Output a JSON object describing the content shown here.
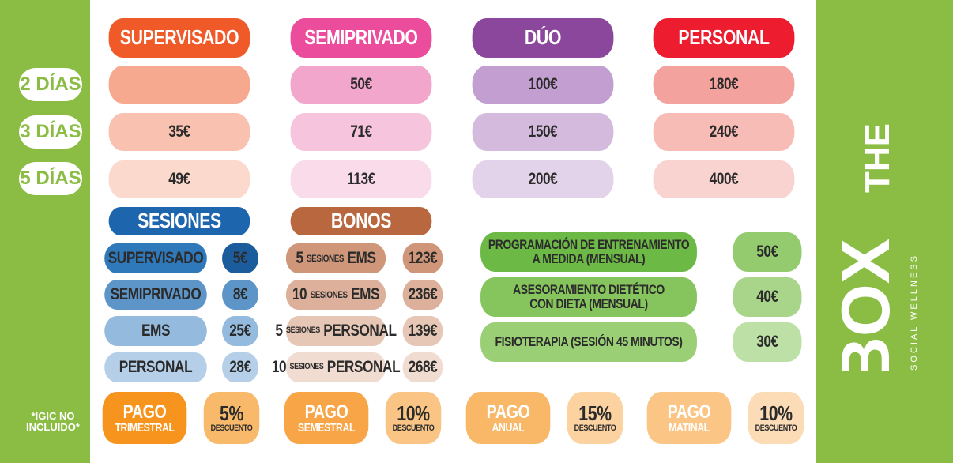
{
  "plans": [
    {
      "name": "SUPERVISADO",
      "color": "#f05a28",
      "tint": "#f7a98f",
      "prices": [
        "",
        "35€",
        "49€"
      ]
    },
    {
      "name": "SEMIPRIVADO",
      "color": "#ec4c9c",
      "tint": "#f2a6cc",
      "prices": [
        "50€",
        "71€",
        "113€"
      ]
    },
    {
      "name": "DÚO",
      "color": "#8b479b",
      "tint": "#c39ed0",
      "prices": [
        "100€",
        "150€",
        "200€"
      ]
    },
    {
      "name": "PERSONAL",
      "color": "#ed1c2e",
      "tint": "#f4a29e",
      "prices": [
        "180€",
        "240€",
        "400€"
      ]
    }
  ],
  "days": [
    "2 DÍAS",
    "3 DÍAS",
    "5 DÍAS"
  ],
  "sesiones": {
    "title": "SESIONES",
    "items": [
      {
        "label": "SUPERVISADO",
        "price": "5€"
      },
      {
        "label": "SEMIPRIVADO",
        "price": "8€"
      },
      {
        "label": "EMS",
        "price": "25€"
      },
      {
        "label": "PERSONAL",
        "price": "28€"
      }
    ]
  },
  "bonos": {
    "title": "BONOS",
    "items": [
      {
        "count": "5",
        "small": "SESIONES",
        "label": "EMS",
        "price": "123€"
      },
      {
        "count": "10",
        "small": "SESIONES",
        "label": "EMS",
        "price": "236€"
      },
      {
        "count": "5",
        "small": "SESIONES",
        "label": "PERSONAL",
        "price": "139€"
      },
      {
        "count": "10",
        "small": "SESIONES",
        "label": "PERSONAL",
        "price": "268€"
      }
    ]
  },
  "extras": [
    {
      "line1": "PROGRAMACIÓN DE ENTRENAMIENTO",
      "line2": "A MEDIDA (MENSUAL)",
      "price": "50€"
    },
    {
      "line1": "ASESORAMIENTO DIETÉTICO",
      "line2": "CON DIETA (MENSUAL)",
      "price": "40€"
    },
    {
      "line1": "FISIOTERAPIA (SESIÓN 45 MINUTOS)",
      "line2": "",
      "price": "30€"
    }
  ],
  "pagos": [
    {
      "top": "PAGO",
      "bottom": "TRIMESTRAL",
      "percent": "5%",
      "desc": "DESCUENTO"
    },
    {
      "top": "PAGO",
      "bottom": "SEMESTRAL",
      "percent": "10%",
      "desc": "DESCUENTO"
    },
    {
      "top": "PAGO",
      "bottom": "ANUAL",
      "percent": "15%",
      "desc": "DESCUENTO"
    },
    {
      "top": "PAGO",
      "bottom": "MATINAL",
      "percent": "10%",
      "desc": "DESCUENTO"
    }
  ],
  "igic": {
    "line1": "*IGIC NO",
    "line2": "INCLUIDO*"
  },
  "brand": {
    "the": "THE",
    "box": "BOX",
    "tagline": "SOCIAL WELLNESS"
  },
  "colors": {
    "green": "#8bbd45",
    "blue": "#1d66ae",
    "brown": "#b9673f",
    "orange": "#f7941d"
  }
}
